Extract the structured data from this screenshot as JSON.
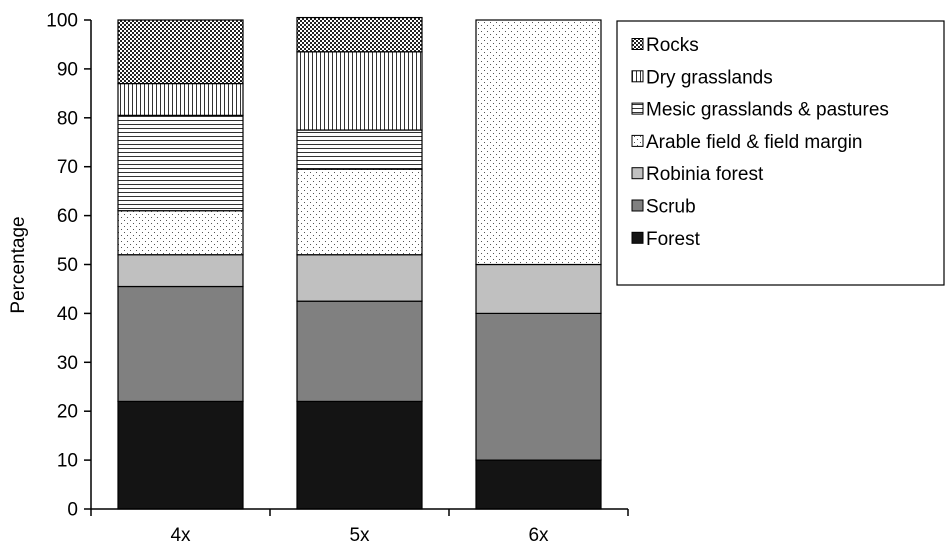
{
  "chart_data": {
    "type": "bar",
    "stacked": true,
    "categories": [
      "4x",
      "5x",
      "6x"
    ],
    "series": [
      {
        "name": "Forest",
        "values": [
          22,
          22,
          10
        ],
        "pattern": "solid-black"
      },
      {
        "name": "Scrub",
        "values": [
          23.5,
          20.5,
          30
        ],
        "pattern": "solid-dark-gray"
      },
      {
        "name": "Robinia forest",
        "values": [
          6.5,
          9.5,
          10
        ],
        "pattern": "solid-light-gray"
      },
      {
        "name": "Arable field & field margin",
        "values": [
          9,
          17.5,
          50
        ],
        "pattern": "sparse-dots"
      },
      {
        "name": "Mesic grasslands & pastures",
        "values": [
          19.5,
          8,
          0
        ],
        "pattern": "horizontal-lines"
      },
      {
        "name": "Dry grasslands",
        "values": [
          6.5,
          16,
          0
        ],
        "pattern": "vertical-lines"
      },
      {
        "name": "Rocks",
        "values": [
          13,
          7,
          0
        ],
        "pattern": "checkerboard"
      }
    ],
    "xlabel": "",
    "ylabel": "Percentage",
    "ylim": [
      0,
      100
    ],
    "yticks": [
      0,
      10,
      20,
      30,
      40,
      50,
      60,
      70,
      80,
      90,
      100
    ],
    "grid": false,
    "legend_position": "top-right",
    "legend_order": [
      "Rocks",
      "Dry grasslands",
      "Mesic grasslands & pastures",
      "Arable field & field margin",
      "Robinia forest",
      "Scrub",
      "Forest"
    ]
  }
}
